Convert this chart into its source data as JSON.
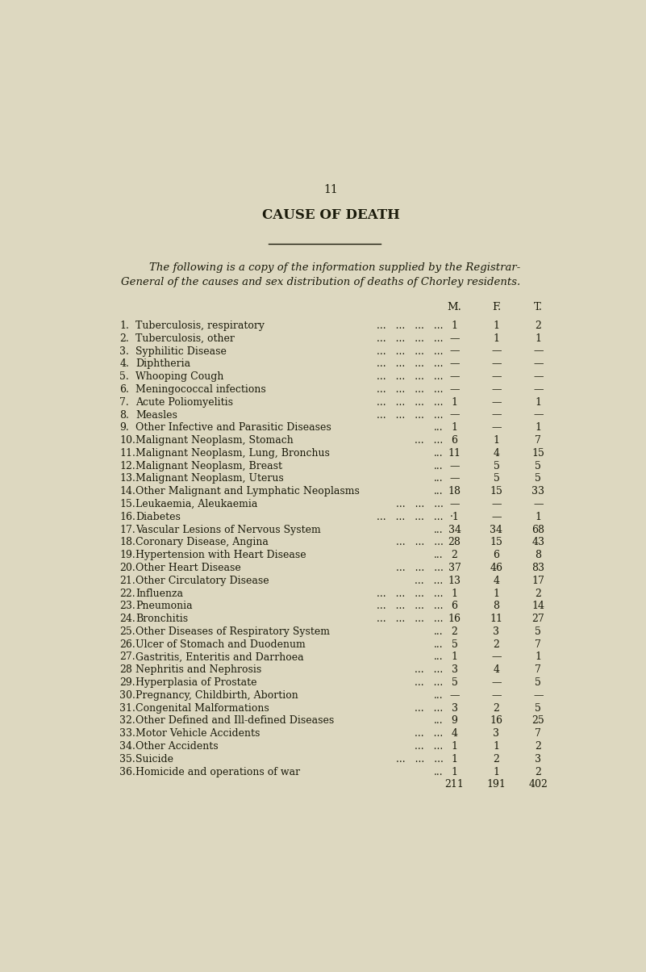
{
  "page_number": "11",
  "title": "CAUSE OF DEATH",
  "intro_line1": "The following is a copy of the information supplied by the Registrar-",
  "intro_line2": "General of the causes and sex distribution of deaths of Chorley residents.",
  "col_headers": [
    "M.",
    "F.",
    "T."
  ],
  "rows": [
    {
      "num": "1.",
      "cause": "Tuberculosis, respiratory",
      "dots": "...   ...   ...   ...",
      "M": "1",
      "F": "1",
      "T": "2"
    },
    {
      "num": "2.",
      "cause": "Tuberculosis, other",
      "dots": "...   ...   ...   ...",
      "M": "—",
      "F": "1",
      "T": "1"
    },
    {
      "num": "3.",
      "cause": "Syphilitic Disease",
      "dots": "...   ...   ...   ...",
      "M": "—",
      "F": "—",
      "T": "—"
    },
    {
      "num": "4.",
      "cause": "Diphtheria",
      "dots": "...   ...   ...   ...",
      "M": "—",
      "F": "—",
      "T": "—"
    },
    {
      "num": "5.",
      "cause": "Whooping Cough",
      "dots": "...   ...   ...   ...",
      "M": "—",
      "F": "—",
      "T": "—"
    },
    {
      "num": "6.",
      "cause": "Meningococcal infections",
      "dots": "...   ...   ...   ...",
      "M": "—",
      "F": "—",
      "T": "—"
    },
    {
      "num": "7.",
      "cause": "Acute Poliomyelitis",
      "dots": "...   ...   ...   ...",
      "M": "1",
      "F": "—",
      "T": "1"
    },
    {
      "num": "8.",
      "cause": "Measles",
      "dots": "...   ...   ...   ...",
      "M": "—",
      "F": "—",
      "T": "—"
    },
    {
      "num": "9.",
      "cause": "Other Infective and Parasitic Diseases",
      "dots": "...",
      "M": "1",
      "F": "—",
      "T": "1"
    },
    {
      "num": "10.",
      "cause": "Malignant Neoplasm, Stomach",
      "dots": "...   ...",
      "M": "6",
      "F": "1",
      "T": "7"
    },
    {
      "num": "11.",
      "cause": "Malignant Neoplasm, Lung, Bronchus",
      "dots": "...",
      "M": "11",
      "F": "4",
      "T": "15"
    },
    {
      "num": "12.",
      "cause": "Malignant Neoplasm, Breast",
      "dots": "...",
      "M": "—",
      "F": "5",
      "T": "5"
    },
    {
      "num": "13.",
      "cause": "Malignant Neoplasm, Uterus",
      "dots": "...",
      "M": "—",
      "F": "5",
      "T": "5"
    },
    {
      "num": "14.",
      "cause": "Other Malignant and Lymphatic Neoplasms",
      "dots": "...",
      "M": "18",
      "F": "15",
      "T": "33"
    },
    {
      "num": "15.",
      "cause": "Leukaemia, Aleukaemia",
      "dots": "...   ...   ...",
      "M": "—",
      "F": "—",
      "T": "—"
    },
    {
      "num": "16.",
      "cause": "Diabetes",
      "dots": "...   ...   ...   ...",
      "M": "·1",
      "F": "—",
      "T": "1"
    },
    {
      "num": "17.",
      "cause": "Vascular Lesions of Nervous System",
      "dots": "...",
      "M": "34",
      "F": "34",
      "T": "68"
    },
    {
      "num": "18.",
      "cause": "Coronary Disease, Angina",
      "dots": "...   ...   ...",
      "M": "28",
      "F": "15",
      "T": "43"
    },
    {
      "num": "19.",
      "cause": "Hypertension with Heart Disease",
      "dots": "...",
      "M": "2",
      "F": "6",
      "T": "8"
    },
    {
      "num": "20.",
      "cause": "Other Heart Disease",
      "dots": "...   ...   ...",
      "M": "37",
      "F": "46",
      "T": "83"
    },
    {
      "num": "21.",
      "cause": "Other Circulatory Disease",
      "dots": "...   ...",
      "M": "13",
      "F": "4",
      "T": "17"
    },
    {
      "num": "22.",
      "cause": "Influenza",
      "dots": "...   ...   ...   ...",
      "M": "1",
      "F": "1",
      "T": "2"
    },
    {
      "num": "23.",
      "cause": "Pneumonia",
      "dots": "...   ...   ...   ...",
      "M": "6",
      "F": "8",
      "T": "14"
    },
    {
      "num": "24.",
      "cause": "Bronchitis",
      "dots": "...   ...   ...   ...",
      "M": "16",
      "F": "11",
      "T": "27"
    },
    {
      "num": "25.",
      "cause": "Other Diseases of Respiratory System",
      "dots": "...",
      "M": "2",
      "F": "3",
      "T": "5"
    },
    {
      "num": "26.",
      "cause": "Ulcer of Stomach and Duodenum",
      "dots": "...",
      "M": "5",
      "F": "2",
      "T": "7"
    },
    {
      "num": "27.",
      "cause": "Gastritis, Enteritis and Darrhoea",
      "dots": "...",
      "M": "1",
      "F": "—",
      "T": "1"
    },
    {
      "num": "28",
      "cause": "Nephritis and Nephrosis",
      "dots": "...   ...",
      "M": "3",
      "F": "4",
      "T": "7"
    },
    {
      "num": "29.",
      "cause": "Hyperplasia of Prostate",
      "dots": "...   ...",
      "M": "5",
      "F": "—",
      "T": "5"
    },
    {
      "num": "30.",
      "cause": "Pregnancy, Childbirth, Abortion",
      "dots": "...",
      "M": "—",
      "F": "—",
      "T": "—"
    },
    {
      "num": "31.",
      "cause": "Congenital Malformations",
      "dots": "...   ...",
      "M": "3",
      "F": "2",
      "T": "5"
    },
    {
      "num": "32.",
      "cause": "Other Defined and Ill-defined Diseases",
      "dots": "...",
      "M": "9",
      "F": "16",
      "T": "25"
    },
    {
      "num": "33.",
      "cause": "Motor Vehicle Accidents",
      "dots": "...   ...",
      "M": "4",
      "F": "3",
      "T": "7"
    },
    {
      "num": "34.",
      "cause": "Other Accidents",
      "dots": "...   ...",
      "M": "1",
      "F": "1",
      "T": "2"
    },
    {
      "num": "35.",
      "cause": "Suicide",
      "dots": "...   ...   ...",
      "M": "1",
      "F": "2",
      "T": "3"
    },
    {
      "num": "36.",
      "cause": "Homicide and operations of war",
      "dots": "...",
      "M": "1",
      "F": "1",
      "T": "2"
    }
  ],
  "totals": {
    "M": "211",
    "F": "191",
    "T": "402"
  },
  "bg_color": "#ddd8c0",
  "text_color": "#1a1a0a",
  "title_fontsize": 12,
  "page_num_fontsize": 10,
  "intro_fontsize": 9.5,
  "row_fontsize": 9.0,
  "col_header_fontsize": 9.5
}
